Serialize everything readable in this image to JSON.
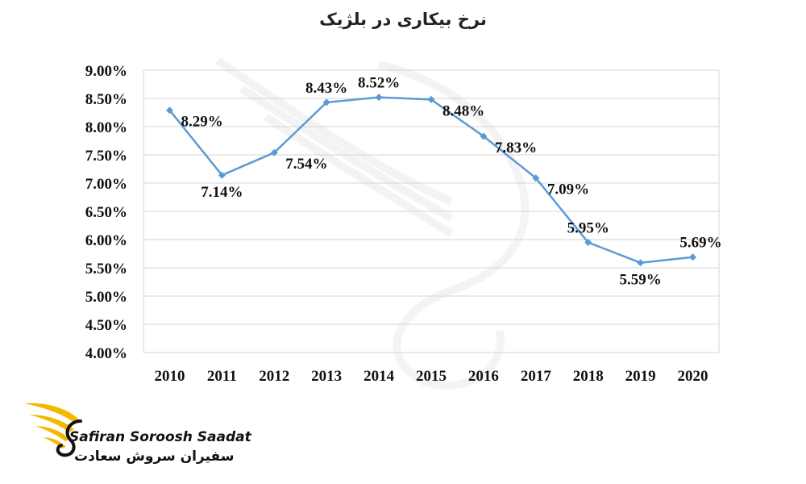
{
  "chart_data": {
    "type": "line",
    "title": "نرخ بیکاری در بلژیک",
    "categories": [
      "2010",
      "2011",
      "2012",
      "2013",
      "2014",
      "2015",
      "2016",
      "2017",
      "2018",
      "2019",
      "2020"
    ],
    "series": [
      {
        "values": [
          8.29,
          7.14,
          7.54,
          8.43,
          8.52,
          8.48,
          7.83,
          7.09,
          5.95,
          5.59,
          5.69
        ],
        "labels": [
          "8.29%",
          "7.14%",
          "7.54%",
          "8.43%",
          "8.52%",
          "8.48%",
          "7.83%",
          "7.09%",
          "5.95%",
          "5.59%",
          "5.69%"
        ],
        "color": "#5b9bd5"
      }
    ],
    "ylim": [
      4.0,
      9.0
    ],
    "y_ticks": [
      "4.00%",
      "4.50%",
      "5.00%",
      "5.50%",
      "6.00%",
      "6.50%",
      "7.00%",
      "7.50%",
      "8.00%",
      "8.50%",
      "9.00%"
    ],
    "xlabel": "",
    "ylabel": "",
    "grid": true
  },
  "watermark": {
    "name_en": "Safiran Soroosh Saadat",
    "name_fa": "سفیران سروش سعادت",
    "icon": "wing-swan-logo-icon",
    "accent_color": "#f5b800"
  }
}
